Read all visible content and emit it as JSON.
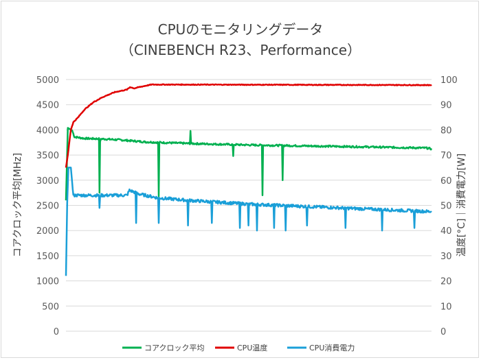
{
  "chart_data": {
    "type": "line",
    "title_line1": "CPUのモニタリングデータ",
    "title_line2": "（CINEBENCH R23、Performance）",
    "ylabel_left": "コアクロック平均[MHz]",
    "ylabel_right": "温度[°C]｜消費電力[W]",
    "ylim_left": [
      0,
      5000
    ],
    "ylim_right": [
      0,
      100
    ],
    "yticks_left": [
      "0",
      "500",
      "1000",
      "1500",
      "2000",
      "2500",
      "3000",
      "3500",
      "4000",
      "4500",
      "5000"
    ],
    "yticks_right": [
      "0",
      "10",
      "20",
      "30",
      "40",
      "50",
      "60",
      "70",
      "80",
      "90",
      "100"
    ],
    "legend_position": "bottom",
    "grid": true,
    "n_samples": 600,
    "series": [
      {
        "name": "コアクロック平均",
        "axis": "left",
        "color": "#00b050",
        "keypoints": [
          [
            0,
            2600
          ],
          [
            3,
            4040
          ],
          [
            10,
            3990
          ],
          [
            14,
            3860
          ],
          [
            30,
            3830
          ],
          [
            60,
            3820
          ],
          [
            90,
            3800
          ],
          [
            100,
            3790
          ],
          [
            130,
            3760
          ],
          [
            200,
            3730
          ],
          [
            300,
            3700
          ],
          [
            400,
            3680
          ],
          [
            500,
            3660
          ],
          [
            590,
            3640
          ],
          [
            600,
            3620
          ]
        ],
        "spikes": [
          [
            100,
            2780
          ],
          [
            102,
            3760
          ],
          [
            278,
            2700
          ],
          [
            374,
            3980
          ],
          [
            650,
            3000
          ]
        ],
        "dips": [
          [
            100,
            2750
          ],
          [
            279,
            2680
          ],
          [
            502,
            3480
          ],
          [
            590,
            2700
          ]
        ]
      },
      {
        "name": "CPU温度",
        "axis": "right",
        "color": "#e00000",
        "keypoints": [
          [
            0,
            65
          ],
          [
            3,
            70
          ],
          [
            5,
            74
          ],
          [
            8,
            80
          ],
          [
            12,
            83
          ],
          [
            20,
            85
          ],
          [
            30,
            88
          ],
          [
            45,
            91
          ],
          [
            60,
            93
          ],
          [
            80,
            95
          ],
          [
            100,
            96
          ],
          [
            105,
            97
          ],
          [
            112,
            96.5
          ],
          [
            120,
            97
          ],
          [
            140,
            98
          ],
          [
            170,
            98
          ],
          [
            600,
            97.8
          ]
        ]
      },
      {
        "name": "CPU消費電力",
        "axis": "right",
        "color": "#1a9fd8",
        "keypoints": [
          [
            0,
            22
          ],
          [
            2,
            51
          ],
          [
            4,
            65
          ],
          [
            8,
            65
          ],
          [
            12,
            54
          ],
          [
            40,
            54
          ],
          [
            100,
            54
          ],
          [
            104,
            56
          ],
          [
            120,
            54.5
          ],
          [
            150,
            53
          ],
          [
            200,
            52
          ],
          [
            300,
            50.5
          ],
          [
            400,
            49.5
          ],
          [
            500,
            48.5
          ],
          [
            600,
            47.5
          ]
        ],
        "dips": [
          [
            100,
            49
          ],
          [
            210,
            43
          ],
          [
            278,
            43
          ],
          [
            367,
            42
          ],
          [
            438,
            43
          ],
          [
            523,
            41
          ],
          [
            549,
            42
          ],
          [
            574,
            40
          ],
          [
            625,
            41
          ],
          [
            660,
            40
          ],
          [
            725,
            42
          ],
          [
            840,
            41
          ],
          [
            949,
            40
          ],
          [
            1046,
            41
          ]
        ]
      }
    ]
  }
}
